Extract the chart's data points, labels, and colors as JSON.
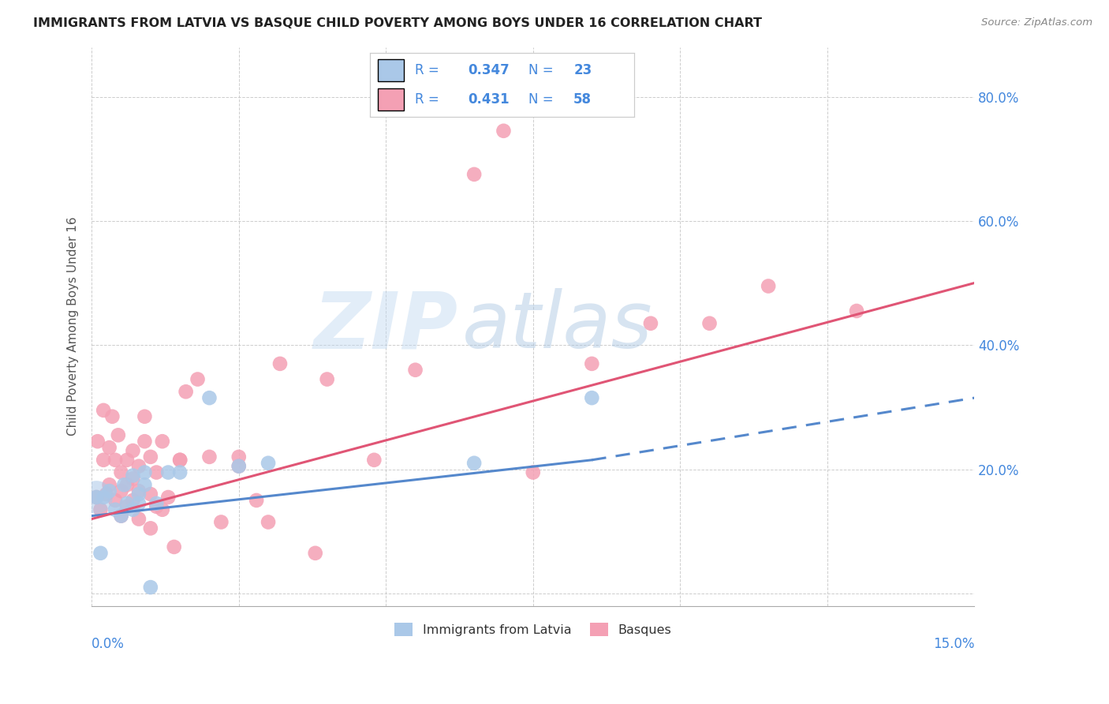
{
  "title": "IMMIGRANTS FROM LATVIA VS BASQUE CHILD POVERTY AMONG BOYS UNDER 16 CORRELATION CHART",
  "source": "Source: ZipAtlas.com",
  "ylabel": "Child Poverty Among Boys Under 16",
  "xlim": [
    0.0,
    0.15
  ],
  "ylim": [
    -0.02,
    0.88
  ],
  "yticks": [
    0.0,
    0.2,
    0.4,
    0.6,
    0.8
  ],
  "ytick_labels": [
    "",
    "20.0%",
    "40.0%",
    "60.0%",
    "80.0%"
  ],
  "xticks": [
    0.0,
    0.025,
    0.05,
    0.075,
    0.1,
    0.125,
    0.15
  ],
  "r_latvia": 0.347,
  "n_latvia": 23,
  "r_basque": 0.431,
  "n_basque": 58,
  "color_latvia": "#aac8e8",
  "color_basque": "#f4a0b4",
  "color_trend_latvia": "#5588cc",
  "color_trend_basque": "#e05575",
  "color_blue_text": "#4488dd",
  "watermark_zip": "ZIP",
  "watermark_atlas": "atlas",
  "latvia_x": [
    0.0008,
    0.0015,
    0.002,
    0.003,
    0.004,
    0.005,
    0.0055,
    0.006,
    0.007,
    0.007,
    0.008,
    0.008,
    0.009,
    0.009,
    0.01,
    0.011,
    0.013,
    0.015,
    0.02,
    0.025,
    0.03,
    0.065,
    0.085
  ],
  "latvia_y": [
    0.155,
    0.065,
    0.155,
    0.165,
    0.135,
    0.125,
    0.175,
    0.145,
    0.135,
    0.19,
    0.16,
    0.145,
    0.175,
    0.195,
    0.01,
    0.145,
    0.195,
    0.195,
    0.315,
    0.205,
    0.21,
    0.21,
    0.315
  ],
  "basque_x": [
    0.0008,
    0.001,
    0.0015,
    0.002,
    0.002,
    0.0025,
    0.003,
    0.003,
    0.0035,
    0.004,
    0.004,
    0.0045,
    0.005,
    0.005,
    0.005,
    0.006,
    0.006,
    0.006,
    0.007,
    0.007,
    0.007,
    0.008,
    0.008,
    0.008,
    0.009,
    0.009,
    0.01,
    0.01,
    0.01,
    0.011,
    0.011,
    0.012,
    0.012,
    0.013,
    0.014,
    0.015,
    0.015,
    0.016,
    0.018,
    0.02,
    0.022,
    0.025,
    0.025,
    0.028,
    0.03,
    0.032,
    0.038,
    0.04,
    0.048,
    0.055,
    0.065,
    0.07,
    0.075,
    0.085,
    0.095,
    0.105,
    0.115,
    0.13
  ],
  "basque_y": [
    0.155,
    0.245,
    0.135,
    0.215,
    0.295,
    0.16,
    0.175,
    0.235,
    0.285,
    0.15,
    0.215,
    0.255,
    0.125,
    0.165,
    0.195,
    0.14,
    0.175,
    0.215,
    0.15,
    0.185,
    0.23,
    0.12,
    0.165,
    0.205,
    0.245,
    0.285,
    0.105,
    0.16,
    0.22,
    0.14,
    0.195,
    0.135,
    0.245,
    0.155,
    0.075,
    0.215,
    0.215,
    0.325,
    0.345,
    0.22,
    0.115,
    0.205,
    0.22,
    0.15,
    0.115,
    0.37,
    0.065,
    0.345,
    0.215,
    0.36,
    0.675,
    0.745,
    0.195,
    0.37,
    0.435,
    0.435,
    0.495,
    0.455
  ],
  "trend_latvia_x0": 0.0,
  "trend_latvia_y0": 0.125,
  "trend_latvia_x1": 0.085,
  "trend_latvia_y1": 0.215,
  "trend_latvia_dash_x1": 0.15,
  "trend_latvia_dash_y1": 0.315,
  "trend_basque_x0": 0.0,
  "trend_basque_y0": 0.12,
  "trend_basque_x1": 0.15,
  "trend_basque_y1": 0.5
}
